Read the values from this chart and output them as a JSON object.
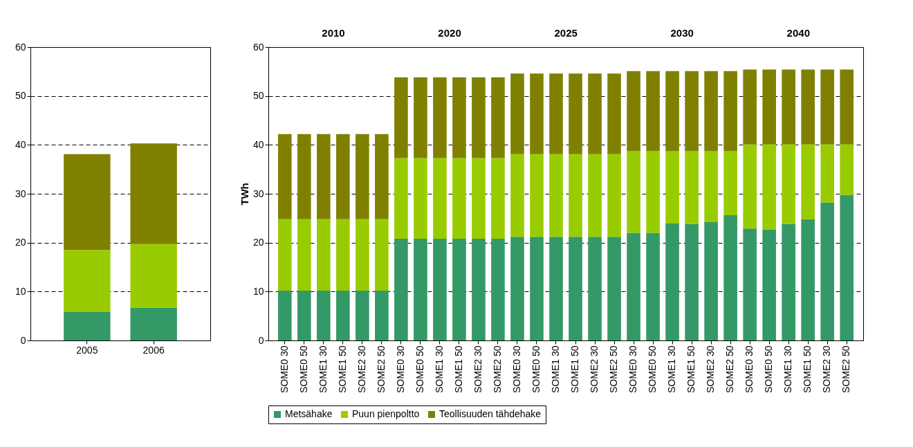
{
  "chart_data": [
    {
      "type": "bar",
      "stacked": true,
      "categories": [
        "2005",
        "2006"
      ],
      "ylim": [
        0,
        60
      ],
      "yticks": [
        0,
        10,
        20,
        30,
        40,
        50,
        60
      ],
      "grid": "y",
      "legend": false,
      "series": [
        {
          "color": "#339966",
          "values": [
            5.8,
            6.7
          ]
        },
        {
          "color": "#99cc00",
          "values": [
            12.7,
            13.0
          ]
        },
        {
          "color": "#808000",
          "values": [
            19.6,
            20.6
          ]
        }
      ]
    },
    {
      "type": "bar",
      "stacked": true,
      "ylabel": "TWh",
      "annotations": [
        "2010",
        "2020",
        "2025",
        "2030",
        "2040"
      ],
      "categories": [
        "SOME0 30",
        "SOME0 50",
        "SOME1 30",
        "SOME1 50",
        "SOME2 30",
        "SOME2 50",
        "SOME0 30",
        "SOME0 50",
        "SOME1 30",
        "SOME1 50",
        "SOME2 30",
        "SOME2 50",
        "SOME0 30",
        "SOME0 50",
        "SOME1 30",
        "SOME1 50",
        "SOME2 30",
        "SOME2 50",
        "SOME0 30",
        "SOME0 50",
        "SOME1 30",
        "SOME1 50",
        "SOME2 30",
        "SOME2 50",
        "SOME0 30",
        "SOME0 50",
        "SOME1 30",
        "SOME1 50",
        "SOME2 30",
        "SOME2 50"
      ],
      "ylim": [
        0,
        60
      ],
      "yticks": [
        0,
        10,
        20,
        30,
        40,
        50,
        60
      ],
      "grid": "y",
      "legend": "bottom",
      "series": [
        {
          "name": "Metsähake",
          "color": "#339966",
          "values": [
            10.2,
            10.2,
            10.2,
            10.2,
            10.2,
            10.2,
            20.8,
            20.8,
            20.8,
            20.8,
            20.8,
            20.8,
            21.2,
            21.2,
            21.2,
            21.2,
            21.2,
            21.2,
            22.0,
            22.0,
            23.9,
            23.8,
            24.2,
            25.6,
            22.9,
            22.7,
            23.8,
            24.8,
            28.2,
            29.8
          ]
        },
        {
          "name": "Puun pienpoltto",
          "color": "#99cc00",
          "values": [
            14.6,
            14.6,
            14.6,
            14.6,
            14.6,
            14.6,
            16.5,
            16.5,
            16.5,
            16.5,
            16.5,
            16.5,
            16.9,
            16.9,
            16.9,
            16.9,
            16.9,
            16.9,
            16.7,
            16.7,
            14.8,
            14.9,
            14.5,
            13.1,
            17.2,
            17.4,
            16.3,
            15.3,
            11.9,
            10.3
          ]
        },
        {
          "name": "Teollisuuden tähdehake",
          "color": "#808000",
          "values": [
            17.4,
            17.4,
            17.4,
            17.4,
            17.4,
            17.4,
            16.5,
            16.5,
            16.5,
            16.5,
            16.5,
            16.5,
            16.5,
            16.5,
            16.5,
            16.5,
            16.5,
            16.5,
            16.4,
            16.4,
            16.4,
            16.4,
            16.4,
            16.4,
            15.3,
            15.3,
            15.3,
            15.3,
            15.3,
            15.3
          ]
        }
      ]
    }
  ]
}
